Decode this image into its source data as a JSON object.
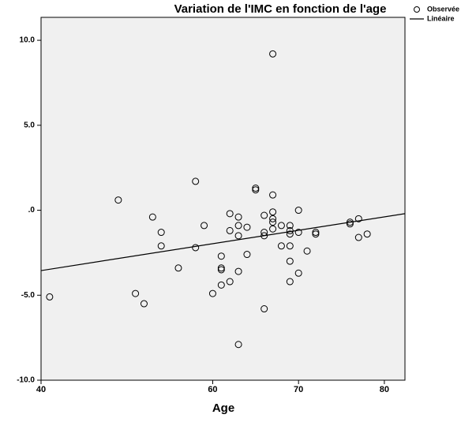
{
  "chart_data": {
    "type": "scatter",
    "title": "Variation de l'IMC en fonction de l'age",
    "x_label": "Age",
    "xlim": [
      40,
      82.4
    ],
    "ylim": [
      -10,
      11.35
    ],
    "xticks": [
      40,
      60,
      70,
      80
    ],
    "yticks": [
      {
        "value": 10,
        "label": "10.0"
      },
      {
        "value": 5,
        "label": "5.0"
      },
      {
        "value": 0,
        "label": ".0"
      },
      {
        "value": -5,
        "label": "-5.0"
      },
      {
        "value": -10,
        "label": "-10.0"
      }
    ],
    "series": [
      {
        "name": "Observée",
        "type": "scatter",
        "color": "#000000",
        "x": [
          41,
          49,
          51,
          52,
          53,
          54,
          54,
          56,
          58,
          58,
          59,
          60,
          61,
          61,
          61,
          61,
          62,
          62,
          62,
          63,
          63,
          63,
          63,
          63,
          64,
          64,
          65,
          65,
          66,
          66,
          66,
          66,
          67,
          67,
          67,
          67,
          67,
          67,
          68,
          68,
          69,
          69,
          69,
          69,
          69,
          69,
          70,
          70,
          70,
          71,
          72,
          72,
          76,
          76,
          77,
          77,
          78
        ],
        "values": [
          -5.1,
          0.6,
          -4.9,
          -5.5,
          -0.4,
          -1.3,
          -2.1,
          -3.4,
          1.7,
          -2.2,
          -0.9,
          -4.9,
          -2.7,
          -3.4,
          -3.5,
          -4.4,
          -0.2,
          -1.2,
          -4.2,
          -0.4,
          -0.9,
          -1.5,
          -3.6,
          -7.9,
          -1.0,
          -2.6,
          1.3,
          1.2,
          -0.3,
          -1.3,
          -1.5,
          -5.8,
          9.2,
          0.9,
          -0.1,
          -0.5,
          -0.7,
          -1.1,
          -0.9,
          -2.1,
          -0.9,
          -1.2,
          -1.4,
          -2.1,
          -3.0,
          -4.2,
          0.0,
          -1.3,
          -3.7,
          -2.4,
          -1.3,
          -1.4,
          -0.7,
          -0.8,
          -0.5,
          -1.6,
          -1.4
        ]
      },
      {
        "name": "Linéaire",
        "type": "line",
        "color": "#000000",
        "x": [
          40,
          82.4
        ],
        "values": [
          -3.55,
          -0.2
        ]
      }
    ]
  }
}
